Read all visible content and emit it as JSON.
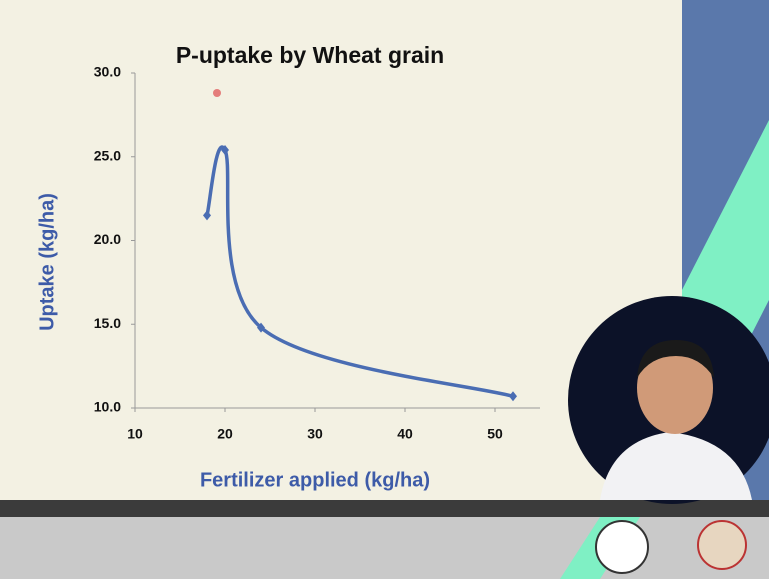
{
  "chart_data": {
    "type": "line",
    "title": "P-uptake by Wheat grain",
    "x_label": "Fertilizer applied (kg/ha)",
    "y_label": "Uptake (kg/ha)",
    "x": [
      18,
      20,
      24,
      52
    ],
    "values": [
      21.5,
      25.4,
      14.8,
      10.7
    ],
    "color": "#4a6db3",
    "xlim": [
      10,
      55
    ],
    "xticks": [
      10,
      20,
      30,
      40,
      50
    ],
    "ylim": [
      10,
      30
    ],
    "yticks": [
      {
        "value": 10,
        "label": "10.0"
      },
      {
        "value": 15,
        "label": "15.0"
      },
      {
        "value": 20,
        "label": "20.0"
      },
      {
        "value": 25,
        "label": "25.0"
      },
      {
        "value": 30,
        "label": "30.0"
      }
    ],
    "smooth": true
  }
}
